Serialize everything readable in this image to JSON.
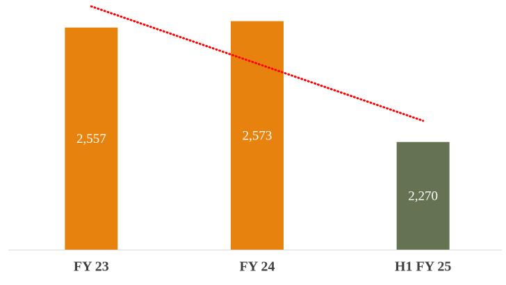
{
  "chart_data": {
    "type": "bar",
    "categories": [
      "FY 23",
      "FY 24",
      "H1 FY 25"
    ],
    "values": [
      2557,
      2573,
      2270
    ],
    "value_labels": [
      "2,557",
      "2,573",
      "2,270"
    ],
    "colors": [
      "#e8820f",
      "#e8820f",
      "#657352"
    ],
    "ylim": [
      2000,
      2600
    ],
    "trendline": {
      "type": "linear",
      "color": "#ff0000"
    }
  }
}
